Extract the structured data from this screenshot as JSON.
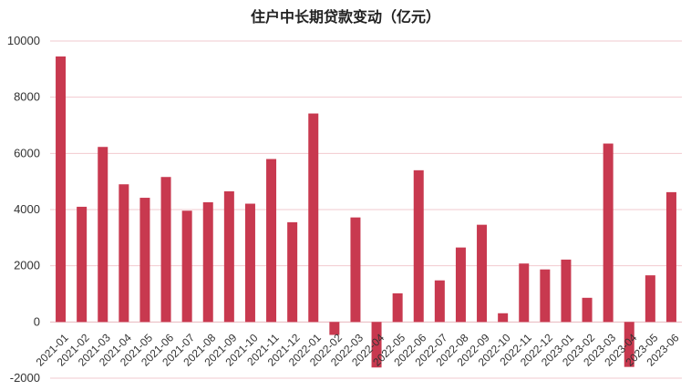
{
  "chart_data": {
    "type": "bar",
    "title": "住户中长期贷款变动（亿元）",
    "xlabel": "",
    "ylabel": "",
    "ylim": [
      -2000,
      10000
    ],
    "yticks": [
      -2000,
      0,
      2000,
      4000,
      6000,
      8000,
      10000
    ],
    "grid": true,
    "legend": "none",
    "bar_color": "#c8394f",
    "categories": [
      "2021-01",
      "2021-02",
      "2021-03",
      "2021-04",
      "2021-05",
      "2021-06",
      "2021-07",
      "2021-08",
      "2021-09",
      "2021-10",
      "2021-11",
      "2021-12",
      "2022-01",
      "2022-02",
      "2022-03",
      "2022-04",
      "2022-05",
      "2022-06",
      "2022-07",
      "2022-08",
      "2022-09",
      "2022-10",
      "2022-11",
      "2022-12",
      "2023-01",
      "2023-02",
      "2023-03",
      "2023-04",
      "2023-05",
      "2023-06"
    ],
    "values": [
      9450,
      4100,
      6230,
      4900,
      4420,
      5160,
      3960,
      4260,
      4650,
      4210,
      5800,
      3550,
      7420,
      -460,
      3720,
      -1620,
      1020,
      5400,
      1480,
      2650,
      3460,
      310,
      2080,
      1870,
      2220,
      860,
      6350,
      -1600,
      1660,
      4620
    ]
  }
}
